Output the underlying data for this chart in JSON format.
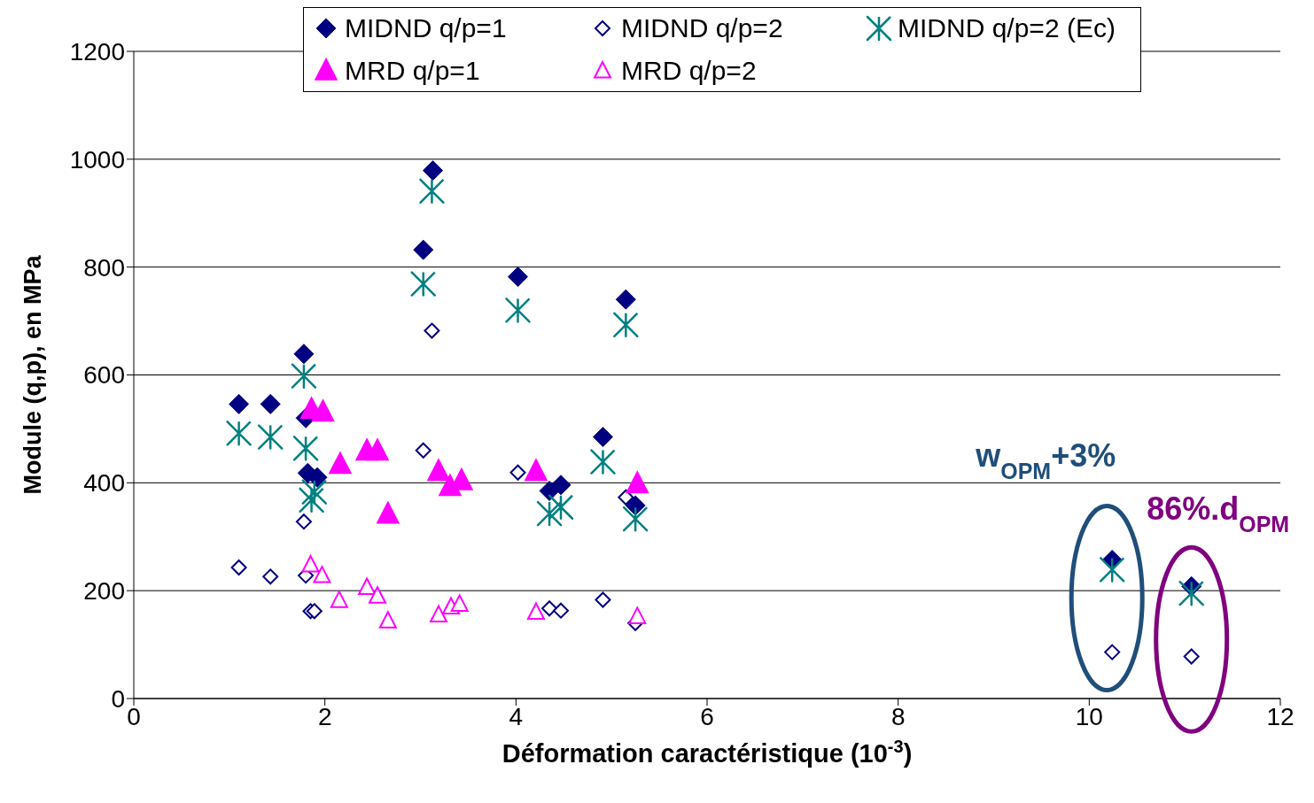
{
  "chart_data": {
    "type": "scatter",
    "xlabel": "Déformation caractéristique (10$^{-3}$)",
    "ylabel": "Module (q,p), en MPa",
    "xlim": [
      0,
      12
    ],
    "xticks": [
      0,
      2,
      4,
      6,
      8,
      10,
      12
    ],
    "ylim": [
      0,
      1200
    ],
    "yticks": [
      0,
      200,
      400,
      600,
      800,
      1000,
      1200
    ],
    "grid": "y",
    "legend": "top",
    "series": [
      {
        "name": "MIDND q/p=1",
        "color": "#000080",
        "marker": "diamond",
        "x": [
          1.1,
          1.43,
          1.78,
          1.8,
          1.82,
          1.92,
          3.13,
          3.03,
          4.02,
          5.15,
          4.91,
          4.35,
          4.47,
          5.25,
          10.24,
          11.07
        ],
        "values": [
          546,
          546,
          639,
          520,
          418,
          410,
          979,
          832,
          782,
          740,
          485,
          385,
          396,
          358,
          257,
          208
        ]
      },
      {
        "name": "MIDND q/p=2",
        "color": "#000080",
        "marker": "diamond",
        "x": [
          1.1,
          1.43,
          1.78,
          1.8,
          1.85,
          1.89,
          3.12,
          3.03,
          4.02,
          5.15,
          4.35,
          4.47,
          4.91,
          5.25,
          10.24,
          11.07
        ],
        "values": [
          243,
          226,
          328,
          228,
          162,
          162,
          682,
          460,
          419,
          373,
          167,
          163,
          183,
          140,
          86,
          78
        ]
      },
      {
        "name": "MIDND q/p=2 (Ec)",
        "color": "#008080",
        "marker": "cross",
        "x": [
          1.1,
          1.43,
          1.78,
          1.8,
          1.89,
          1.86,
          3.12,
          3.03,
          4.02,
          5.15,
          4.91,
          4.35,
          4.47,
          5.25,
          10.24,
          11.07
        ],
        "values": [
          492,
          485,
          598,
          464,
          383,
          368,
          941,
          769,
          720,
          693,
          439,
          343,
          355,
          333,
          239,
          195
        ]
      },
      {
        "name": "MRD q/p=1",
        "color": "#ff00ff",
        "marker": "triangle",
        "x": [
          1.86,
          1.98,
          2.16,
          2.44,
          2.55,
          2.66,
          3.19,
          3.31,
          3.43,
          4.21,
          5.27
        ],
        "values": [
          536,
          531,
          434,
          459,
          459,
          342,
          421,
          393,
          404,
          421,
          398
        ]
      },
      {
        "name": "MRD q/p=2",
        "color": "#ff00ff",
        "marker": "triangle",
        "x": [
          1.85,
          1.97,
          2.15,
          2.44,
          2.55,
          2.66,
          3.19,
          3.32,
          3.41,
          4.21,
          5.27
        ],
        "values": [
          248,
          228,
          182,
          206,
          190,
          144,
          155,
          170,
          175,
          160,
          152
        ]
      }
    ],
    "annotations": [
      {
        "text": "w$_{OPM}$+3%",
        "x": 10.24,
        "y": 257
      },
      {
        "text": "86%.d$_{OPM}$",
        "x": 11.07,
        "y": 208
      }
    ]
  }
}
